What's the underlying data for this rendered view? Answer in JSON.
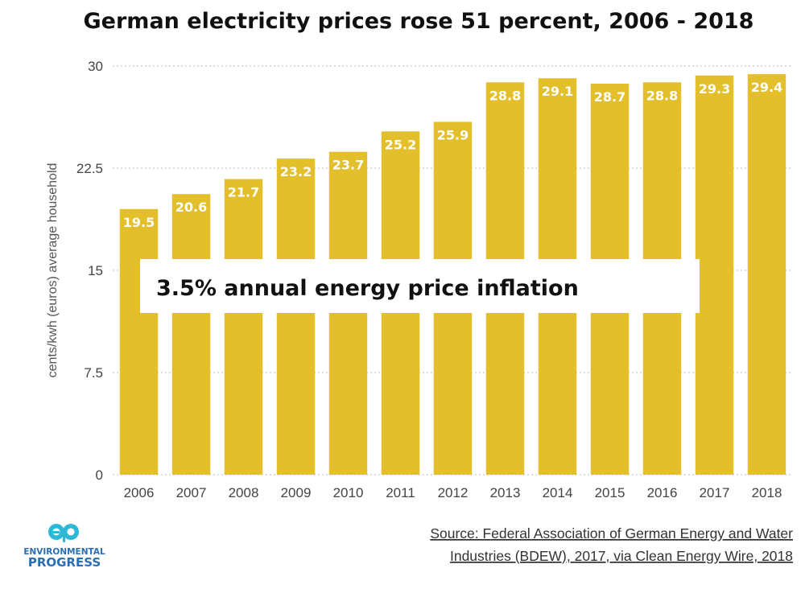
{
  "chart_data": {
    "type": "bar",
    "title": "German electricity prices rose 51 percent, 2006 - 2018",
    "ylabel": "cents/kwh (euros) average household",
    "xlabel": "",
    "categories": [
      "2006",
      "2007",
      "2008",
      "2009",
      "2010",
      "2011",
      "2012",
      "2013",
      "2014",
      "2015",
      "2016",
      "2017",
      "2018"
    ],
    "values": [
      19.5,
      20.6,
      21.7,
      23.2,
      23.7,
      25.2,
      25.9,
      28.8,
      29.1,
      28.7,
      28.8,
      29.3,
      29.4
    ],
    "data_labels": [
      "19.5",
      "20.6",
      "21.7",
      "23.2",
      "23.7",
      "25.2",
      "25.9",
      "28.8",
      "29.1",
      "28.7",
      "28.8",
      "29.3",
      "29.4"
    ],
    "yticks": [
      "0",
      "7.5",
      "15",
      "22.5",
      "30"
    ],
    "ylim": [
      0,
      30
    ],
    "grid": "horizontal dotted",
    "bar_color": "#e3bf2b",
    "annotation": "3.5% annual energy price inflation",
    "source_lines": [
      "Source: Federal Association of German Energy and Water",
      "Industries (BDEW), 2017, via Clean Energy Wire, 2018"
    ]
  },
  "logo": {
    "mark": "ep",
    "line1": "ENVIRONMENTAL",
    "line2": "PROGRESS",
    "mark_color": "#2fb8d6",
    "text_color": "#2a6fb6"
  }
}
